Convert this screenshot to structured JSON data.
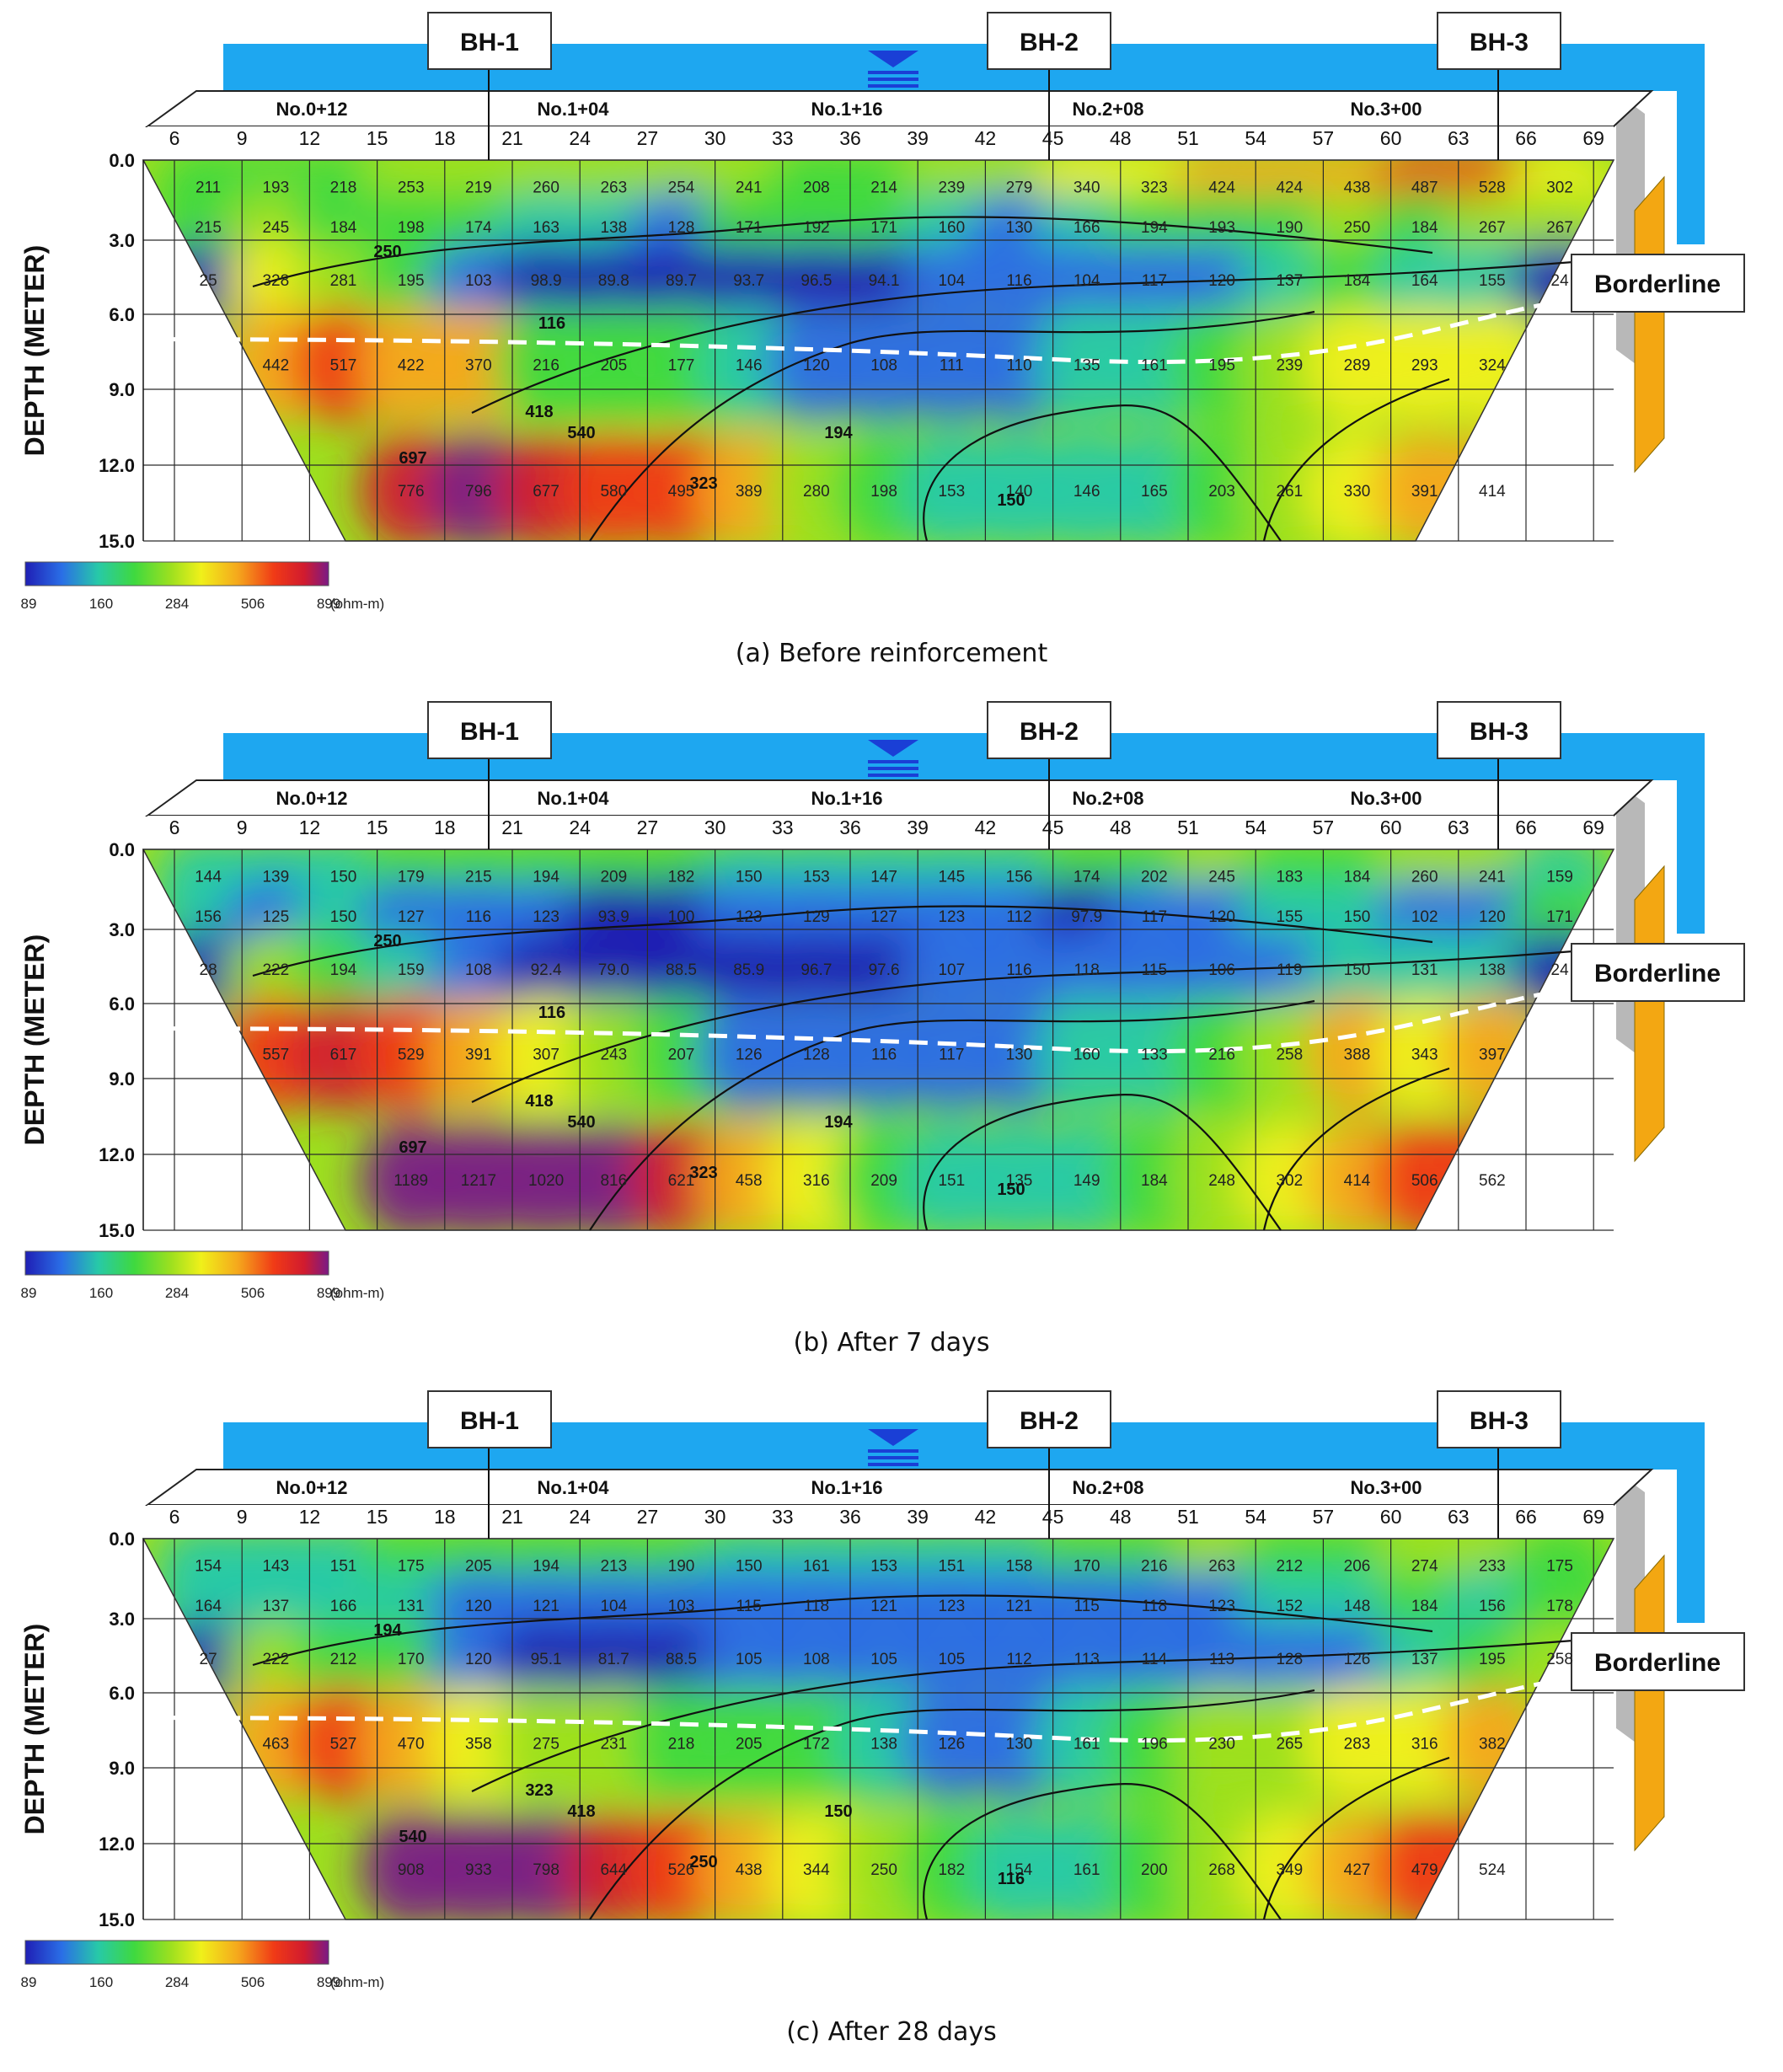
{
  "colors": {
    "water_band": "#1ea7f0",
    "water_symbol": "#1a3fd6",
    "side_panel": "#b8b8b8",
    "side_blade": "#f3a712",
    "ramp": [
      "#1f1fb5",
      "#2a6ee6",
      "#27c9a8",
      "#3fd93f",
      "#9de01f",
      "#f0f01a",
      "#f5a81c",
      "#f03a16",
      "#d11b2f",
      "#7a1a86"
    ]
  },
  "labels": {
    "boreholes": [
      "BH-1",
      "BH-2",
      "BH-3"
    ],
    "borderline": "Borderline",
    "station_markers": [
      "No.0+12",
      "No.1+04",
      "No.1+16",
      "No.2+08",
      "No.3+00"
    ],
    "x_ticks": [
      "6",
      "9",
      "12",
      "15",
      "18",
      "21",
      "24",
      "27",
      "30",
      "33",
      "36",
      "39",
      "42",
      "45",
      "48",
      "51",
      "54",
      "57",
      "60",
      "63",
      "66",
      "69"
    ],
    "depth_ticks": [
      "0.0",
      "3.0",
      "6.0",
      "9.0",
      "12.0",
      "15.0"
    ],
    "depth_axis_title": "DEPTH (METER)",
    "color_scale_ticks": [
      "89",
      "160",
      "284",
      "506",
      "899"
    ],
    "color_scale_unit": "(ohm-m)"
  },
  "chart_data": [
    {
      "type": "heatmap",
      "caption": "(a) Before reinforcement",
      "x": [
        6,
        9,
        12,
        15,
        18,
        21,
        24,
        27,
        30,
        33,
        36,
        39,
        42,
        45,
        48,
        51,
        54,
        57,
        60,
        63,
        66,
        69
      ],
      "depth_range_m": [
        0,
        15
      ],
      "resistivity_scale_ohm_m": [
        89,
        160,
        284,
        506,
        899
      ],
      "cell_rows": [
        {
          "depth_m": 1.0,
          "values": [
            "211",
            "193",
            "218",
            "253",
            "219",
            "260",
            "263",
            "254",
            "241",
            "208",
            "214",
            "239",
            "279",
            "340",
            "323",
            "424",
            "424",
            "438",
            "487",
            "528",
            "302"
          ]
        },
        {
          "depth_m": 2.5,
          "values": [
            "215",
            "245",
            "184",
            "198",
            "174",
            "163",
            "138",
            "128",
            "171",
            "192",
            "171",
            "160",
            "130",
            "166",
            "194",
            "193",
            "190",
            "250",
            "184",
            "267",
            "267"
          ]
        },
        {
          "depth_m": 4.6,
          "values": [
            "25",
            "328",
            "281",
            "195",
            "103",
            "98.9",
            "89.8",
            "89.7",
            "93.7",
            "96.5",
            "94.1",
            "104",
            "116",
            "104",
            "117",
            "120",
            "137",
            "184",
            "164",
            "155",
            "24"
          ]
        },
        {
          "depth_m": 8.0,
          "values": [
            "442",
            "517",
            "422",
            "370",
            "216",
            "205",
            "177",
            "146",
            "120",
            "108",
            "111",
            "110",
            "135",
            "161",
            "195",
            "239",
            "289",
            "293",
            "324"
          ]
        },
        {
          "depth_m": 13.0,
          "values": [
            "776",
            "796",
            "677",
            "580",
            "495",
            "389",
            "280",
            "198",
            "153",
            "140",
            "146",
            "165",
            "203",
            "261",
            "330",
            "391",
            "414"
          ]
        }
      ],
      "contour_labels": [
        "697",
        "540",
        "418",
        "323",
        "250",
        "194",
        "150",
        "116"
      ]
    },
    {
      "type": "heatmap",
      "caption": "(b) After 7 days",
      "x": [
        6,
        9,
        12,
        15,
        18,
        21,
        24,
        27,
        30,
        33,
        36,
        39,
        42,
        45,
        48,
        51,
        54,
        57,
        60,
        63,
        66,
        69
      ],
      "depth_range_m": [
        0,
        15
      ],
      "resistivity_scale_ohm_m": [
        89,
        160,
        284,
        506,
        899
      ],
      "cell_rows": [
        {
          "depth_m": 1.0,
          "values": [
            "144",
            "139",
            "150",
            "179",
            "215",
            "194",
            "209",
            "182",
            "150",
            "153",
            "147",
            "145",
            "156",
            "174",
            "202",
            "245",
            "183",
            "184",
            "260",
            "241",
            "159"
          ]
        },
        {
          "depth_m": 2.5,
          "values": [
            "156",
            "125",
            "150",
            "127",
            "116",
            "123",
            "93.9",
            "100",
            "123",
            "129",
            "127",
            "123",
            "112",
            "97.9",
            "117",
            "120",
            "155",
            "150",
            "102",
            "120",
            "171"
          ]
        },
        {
          "depth_m": 4.6,
          "values": [
            "28",
            "222",
            "194",
            "159",
            "108",
            "92.4",
            "79.0",
            "88.5",
            "85.9",
            "96.7",
            "97.6",
            "107",
            "116",
            "118",
            "115",
            "106",
            "119",
            "150",
            "131",
            "138",
            "24"
          ]
        },
        {
          "depth_m": 8.0,
          "values": [
            "557",
            "617",
            "529",
            "391",
            "307",
            "243",
            "207",
            "126",
            "128",
            "116",
            "117",
            "130",
            "160",
            "133",
            "216",
            "258",
            "388",
            "343",
            "397"
          ]
        },
        {
          "depth_m": 13.0,
          "values": [
            "1189",
            "1217",
            "1020",
            "816",
            "621",
            "458",
            "316",
            "209",
            "151",
            "135",
            "149",
            "184",
            "248",
            "302",
            "414",
            "506",
            "562"
          ]
        }
      ],
      "contour_labels": [
        "697",
        "540",
        "418",
        "323",
        "250",
        "194",
        "150",
        "116"
      ]
    },
    {
      "type": "heatmap",
      "caption": "(c) After 28 days",
      "x": [
        6,
        9,
        12,
        15,
        18,
        21,
        24,
        27,
        30,
        33,
        36,
        39,
        42,
        45,
        48,
        51,
        54,
        57,
        60,
        63,
        66,
        69
      ],
      "depth_range_m": [
        0,
        15
      ],
      "resistivity_scale_ohm_m": [
        89,
        160,
        284,
        506,
        899
      ],
      "cell_rows": [
        {
          "depth_m": 1.0,
          "values": [
            "154",
            "143",
            "151",
            "175",
            "205",
            "194",
            "213",
            "190",
            "150",
            "161",
            "153",
            "151",
            "158",
            "170",
            "216",
            "263",
            "212",
            "206",
            "274",
            "233",
            "175"
          ]
        },
        {
          "depth_m": 2.5,
          "values": [
            "164",
            "137",
            "166",
            "131",
            "120",
            "121",
            "104",
            "103",
            "115",
            "118",
            "121",
            "123",
            "121",
            "115",
            "118",
            "123",
            "152",
            "148",
            "184",
            "156",
            "178"
          ]
        },
        {
          "depth_m": 4.6,
          "values": [
            "27",
            "222",
            "212",
            "170",
            "120",
            "95.1",
            "81.7",
            "88.5",
            "105",
            "108",
            "105",
            "105",
            "112",
            "113",
            "114",
            "113",
            "128",
            "126",
            "137",
            "195",
            "258"
          ]
        },
        {
          "depth_m": 8.0,
          "values": [
            "463",
            "527",
            "470",
            "358",
            "275",
            "231",
            "218",
            "205",
            "172",
            "138",
            "126",
            "130",
            "161",
            "196",
            "230",
            "265",
            "283",
            "316",
            "382"
          ]
        },
        {
          "depth_m": 13.0,
          "values": [
            "908",
            "933",
            "798",
            "644",
            "526",
            "438",
            "344",
            "250",
            "182",
            "154",
            "161",
            "200",
            "268",
            "349",
            "427",
            "479",
            "524"
          ]
        }
      ],
      "contour_labels": [
        "540",
        "418",
        "323",
        "250",
        "194",
        "150",
        "116"
      ]
    }
  ]
}
